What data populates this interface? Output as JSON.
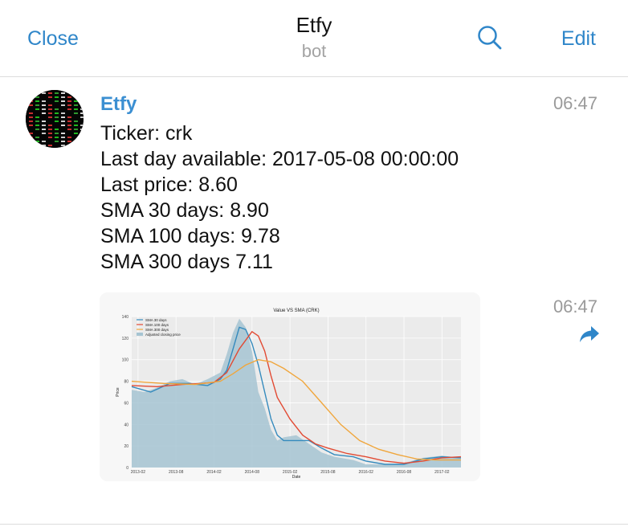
{
  "header": {
    "close_label": "Close",
    "title": "Etfy",
    "subtitle": "bot",
    "edit_label": "Edit",
    "accent": "#2f86c9"
  },
  "message": {
    "sender": "Etfy",
    "time": "06:47",
    "lines": [
      "Ticker: crk",
      "Last day available: 2017-05-08 00:00:00",
      "Last price: 8.60",
      "SMA 30 days: 8.90",
      "SMA 100 days: 9.78",
      "SMA 300 days 7.11"
    ],
    "photo_time": "06:47",
    "share_icon": "share-arrow-icon"
  },
  "chart_data": {
    "type": "line",
    "title": "Value VS SMA (CRK)",
    "xlabel": "Date",
    "ylabel": "Price",
    "ylim": [
      0,
      140
    ],
    "yticks": [
      0,
      20,
      40,
      60,
      80,
      100,
      120,
      140
    ],
    "xticks": [
      "2013-02",
      "2013-08",
      "2014-02",
      "2014-08",
      "2015-02",
      "2015-08",
      "2016-02",
      "2016-08",
      "2017-02"
    ],
    "legend_position": "top-left",
    "grid": true,
    "series": [
      {
        "name": "SMA 30 days",
        "color": "#348abd",
        "points": [
          [
            "2013-01",
            75
          ],
          [
            "2013-04",
            70
          ],
          [
            "2013-07",
            78
          ],
          [
            "2013-10",
            78
          ],
          [
            "2014-01",
            76
          ],
          [
            "2014-03",
            82
          ],
          [
            "2014-04",
            90
          ],
          [
            "2014-05",
            110
          ],
          [
            "2014-06",
            130
          ],
          [
            "2014-07",
            128
          ],
          [
            "2014-08",
            115
          ],
          [
            "2014-09",
            95
          ],
          [
            "2014-10",
            70
          ],
          [
            "2014-11",
            45
          ],
          [
            "2014-12",
            30
          ],
          [
            "2015-01",
            25
          ],
          [
            "2015-03",
            25
          ],
          [
            "2015-05",
            25
          ],
          [
            "2015-07",
            18
          ],
          [
            "2015-09",
            12
          ],
          [
            "2015-12",
            10
          ],
          [
            "2016-02",
            6
          ],
          [
            "2016-05",
            3
          ],
          [
            "2016-08",
            3
          ],
          [
            "2016-11",
            8
          ],
          [
            "2017-02",
            10
          ],
          [
            "2017-05",
            9
          ]
        ]
      },
      {
        "name": "SMA 100 days",
        "color": "#e24a33",
        "points": [
          [
            "2013-01",
            76
          ],
          [
            "2013-05",
            75
          ],
          [
            "2013-09",
            77
          ],
          [
            "2013-12",
            78
          ],
          [
            "2014-02",
            79
          ],
          [
            "2014-04",
            88
          ],
          [
            "2014-06",
            110
          ],
          [
            "2014-08",
            126
          ],
          [
            "2014-09",
            122
          ],
          [
            "2014-10",
            108
          ],
          [
            "2014-11",
            85
          ],
          [
            "2014-12",
            65
          ],
          [
            "2015-02",
            45
          ],
          [
            "2015-04",
            30
          ],
          [
            "2015-06",
            22
          ],
          [
            "2015-08",
            18
          ],
          [
            "2015-11",
            13
          ],
          [
            "2016-02",
            10
          ],
          [
            "2016-05",
            6
          ],
          [
            "2016-08",
            4
          ],
          [
            "2016-11",
            6
          ],
          [
            "2017-02",
            9
          ],
          [
            "2017-05",
            10
          ]
        ]
      },
      {
        "name": "SMA 300 days",
        "color": "#f0a63c",
        "points": [
          [
            "2013-01",
            80
          ],
          [
            "2013-06",
            78
          ],
          [
            "2013-11",
            77
          ],
          [
            "2014-03",
            80
          ],
          [
            "2014-05",
            87
          ],
          [
            "2014-07",
            95
          ],
          [
            "2014-09",
            100
          ],
          [
            "2014-11",
            98
          ],
          [
            "2015-01",
            92
          ],
          [
            "2015-04",
            80
          ],
          [
            "2015-07",
            60
          ],
          [
            "2015-10",
            40
          ],
          [
            "2016-01",
            25
          ],
          [
            "2016-04",
            17
          ],
          [
            "2016-07",
            12
          ],
          [
            "2016-10",
            8
          ],
          [
            "2017-01",
            7
          ],
          [
            "2017-05",
            7
          ]
        ]
      },
      {
        "name": "Adjusted closing price",
        "color": "#a6c4d2",
        "kind": "area",
        "points": [
          [
            "2013-01",
            72
          ],
          [
            "2013-03",
            70
          ],
          [
            "2013-05",
            74
          ],
          [
            "2013-07",
            80
          ],
          [
            "2013-09",
            82
          ],
          [
            "2013-11",
            77
          ],
          [
            "2014-01",
            82
          ],
          [
            "2014-03",
            88
          ],
          [
            "2014-04",
            105
          ],
          [
            "2014-05",
            125
          ],
          [
            "2014-06",
            138
          ],
          [
            "2014-07",
            130
          ],
          [
            "2014-08",
            108
          ],
          [
            "2014-09",
            70
          ],
          [
            "2014-10",
            55
          ],
          [
            "2014-11",
            35
          ],
          [
            "2014-12",
            25
          ],
          [
            "2015-01",
            28
          ],
          [
            "2015-03",
            30
          ],
          [
            "2015-05",
            22
          ],
          [
            "2015-07",
            14
          ],
          [
            "2015-09",
            10
          ],
          [
            "2015-12",
            7
          ],
          [
            "2016-02",
            3
          ],
          [
            "2016-05",
            3
          ],
          [
            "2016-08",
            4
          ],
          [
            "2016-11",
            9
          ],
          [
            "2017-02",
            11
          ],
          [
            "2017-05",
            9
          ]
        ]
      }
    ]
  }
}
